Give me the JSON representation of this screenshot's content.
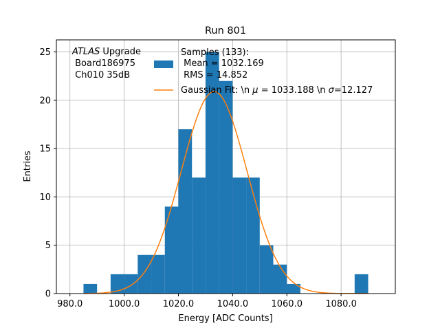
{
  "chart_data": {
    "type": "bar",
    "title": "Run 801",
    "xlabel": "Energy [ADC Counts]",
    "ylabel": "Entries",
    "xlim": [
      975,
      1100
    ],
    "ylim": [
      0,
      26.25
    ],
    "xticks": [
      980,
      1000,
      1020,
      1040,
      1060,
      1080
    ],
    "xtick_labels": [
      "980.0",
      "1000.0",
      "1020.0",
      "1040.0",
      "1060.0",
      "1080.0"
    ],
    "yticks": [
      0,
      5,
      10,
      15,
      20,
      25
    ],
    "ytick_labels": [
      "0",
      "5",
      "10",
      "15",
      "20",
      "25"
    ],
    "grid": true,
    "annotation": {
      "italic": "ATLAS",
      "rest": " Upgrade",
      "line2": " Board186975",
      "line3": " Ch010 35dB"
    },
    "histogram": {
      "name_lines": [
        "Samples (133):",
        " Mean = 1032.169",
        " RMS = 14.852"
      ],
      "color": "#1f77b4",
      "bin_edges": [
        985,
        990,
        995,
        1000,
        1005,
        1010,
        1015,
        1020,
        1025,
        1030,
        1035,
        1040,
        1045,
        1050,
        1055,
        1060,
        1065,
        1070,
        1075,
        1080,
        1085,
        1090
      ],
      "counts": [
        1,
        0,
        2,
        2,
        4,
        4,
        9,
        17,
        12,
        25,
        22,
        12,
        12,
        5,
        3,
        1,
        0,
        0,
        0,
        0,
        2
      ]
    },
    "fit": {
      "name_prefix": "Gaussian Fit: \\n ",
      "mu_symbol": "μ",
      "mu_text": " = 1033.188 \\n ",
      "sigma_symbol": "σ",
      "sigma_text": "=12.127",
      "color": "#ff7f0e",
      "mu": 1033.188,
      "sigma": 12.127,
      "amplitude": 20.9,
      "x_range": [
        985,
        1090
      ]
    },
    "legend_position": "top-right"
  }
}
